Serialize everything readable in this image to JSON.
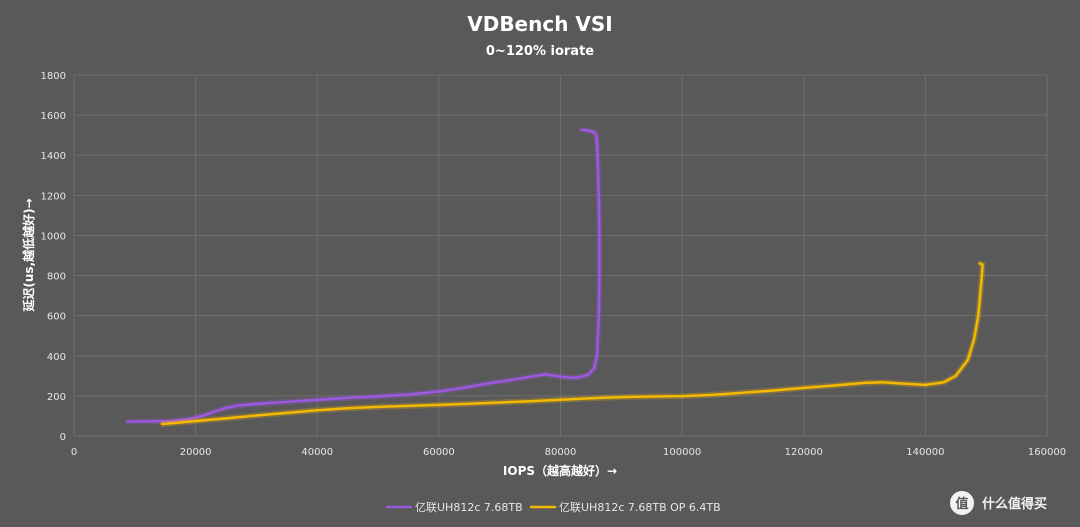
{
  "chart_data": {
    "type": "line",
    "title": "VDBench VSI",
    "subtitle": "0~120% iorate",
    "xlabel": "IOPS（越高越好）→",
    "ylabel": "延迟(us,越低越好)→",
    "xlim": [
      0,
      160000
    ],
    "ylim": [
      0,
      1800
    ],
    "xticks": [
      0,
      20000,
      40000,
      60000,
      80000,
      100000,
      120000,
      140000,
      160000
    ],
    "yticks": [
      0,
      200,
      400,
      600,
      800,
      1000,
      1200,
      1400,
      1600,
      1800
    ],
    "grid": true,
    "legend_position": "bottom",
    "series": [
      {
        "name": "亿联UH812c 7.68TB",
        "color": "#9b59e0",
        "points": [
          [
            8800,
            72
          ],
          [
            12000,
            73
          ],
          [
            16000,
            75
          ],
          [
            19000,
            85
          ],
          [
            21000,
            100
          ],
          [
            23000,
            120
          ],
          [
            25000,
            140
          ],
          [
            27000,
            152
          ],
          [
            30000,
            160
          ],
          [
            35000,
            170
          ],
          [
            40000,
            180
          ],
          [
            45000,
            190
          ],
          [
            50000,
            197
          ],
          [
            55000,
            207
          ],
          [
            60000,
            222
          ],
          [
            64000,
            240
          ],
          [
            68000,
            262
          ],
          [
            72000,
            280
          ],
          [
            75000,
            295
          ],
          [
            77500,
            307
          ],
          [
            79500,
            298
          ],
          [
            81500,
            290
          ],
          [
            83000,
            292
          ],
          [
            84500,
            305
          ],
          [
            85500,
            335
          ],
          [
            86000,
            400
          ],
          [
            86300,
            600
          ],
          [
            86400,
            800
          ],
          [
            86400,
            1000
          ],
          [
            86300,
            1200
          ],
          [
            86100,
            1400
          ],
          [
            85900,
            1500
          ],
          [
            85500,
            1515
          ],
          [
            84500,
            1523
          ],
          [
            83500,
            1528
          ]
        ]
      },
      {
        "name": "亿联UH812c 7.68TB OP 6.4TB",
        "color": "#f5b800",
        "points": [
          [
            14500,
            60
          ],
          [
            17000,
            66
          ],
          [
            20000,
            75
          ],
          [
            25000,
            88
          ],
          [
            30000,
            102
          ],
          [
            35000,
            115
          ],
          [
            40000,
            128
          ],
          [
            45000,
            138
          ],
          [
            50000,
            145
          ],
          [
            55000,
            150
          ],
          [
            60000,
            155
          ],
          [
            65000,
            161
          ],
          [
            70000,
            167
          ],
          [
            75000,
            173
          ],
          [
            80000,
            181
          ],
          [
            85000,
            188
          ],
          [
            90000,
            194
          ],
          [
            95000,
            197
          ],
          [
            100000,
            199
          ],
          [
            105000,
            205
          ],
          [
            110000,
            216
          ],
          [
            115000,
            227
          ],
          [
            120000,
            240
          ],
          [
            125000,
            252
          ],
          [
            130000,
            265
          ],
          [
            133000,
            268
          ],
          [
            136000,
            262
          ],
          [
            140000,
            255
          ],
          [
            143000,
            268
          ],
          [
            145000,
            300
          ],
          [
            147000,
            380
          ],
          [
            148000,
            480
          ],
          [
            148700,
            600
          ],
          [
            149000,
            700
          ],
          [
            149300,
            800
          ],
          [
            149400,
            855
          ],
          [
            149000,
            860
          ]
        ]
      }
    ]
  },
  "watermark": {
    "text": "什么值得买",
    "logo_glyph": "值"
  }
}
